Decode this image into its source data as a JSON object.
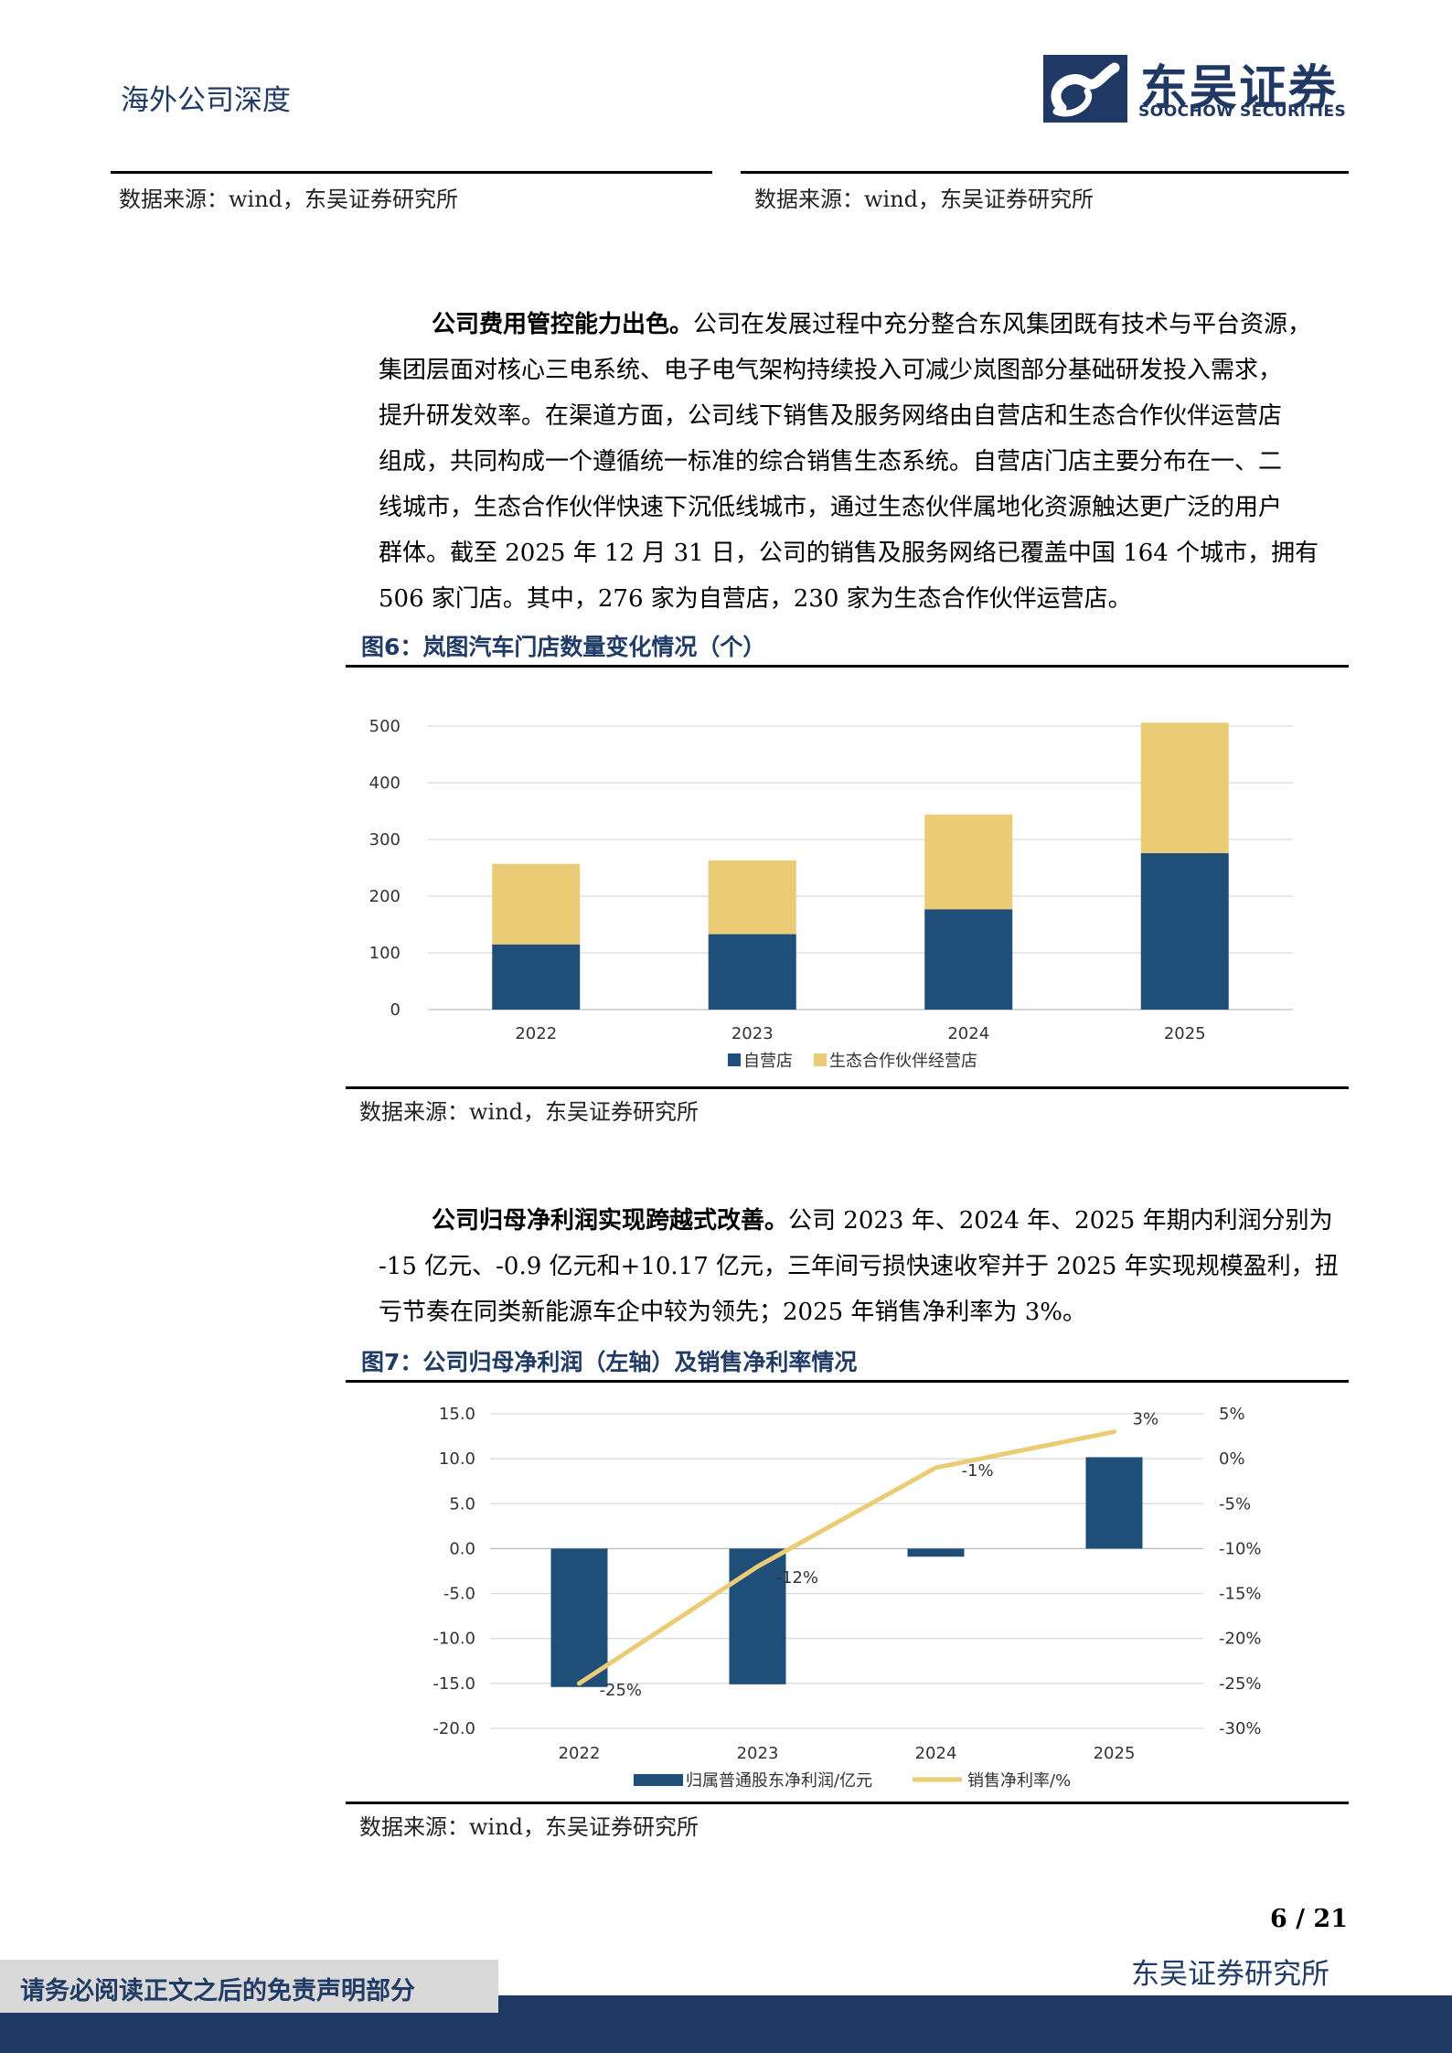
{
  "header": {
    "title": "海外公司深度",
    "logo_cn": "东吴证券",
    "logo_en": "SOOCHOW SECURITIES"
  },
  "top_sources": {
    "left": "数据来源：wind，东吴证券研究所",
    "right": "数据来源：wind，东吴证券研究所"
  },
  "para1": {
    "lead": "公司费用管控能力出色。",
    "lines": [
      "公司在发展过程中充分整合东风集团既有技术与平台资源，",
      "集团层面对核心三电系统、电子电气架构持续投入可减少岚图部分基础研发投入需求，",
      "提升研发效率。在渠道方面，公司线下销售及服务网络由自营店和生态合作伙伴运营店",
      "组成，共同构成一个遵循统一标准的综合销售生态系统。自营店门店主要分布在一、二",
      "线城市，生态合作伙伴快速下沉低线城市，通过生态伙伴属地化资源触达更广泛的用户",
      "群体。截至 2025 年 12 月 31 日，公司的销售及服务网络已覆盖中国 164 个城市，拥有",
      "506 家门店。其中，276 家为自营店，230 家为生态合作伙伴运营店。"
    ]
  },
  "fig6": {
    "title": "图6：岚图汽车门店数量变化情况（个）",
    "source": "数据来源：wind，东吴证券研究所"
  },
  "para2": {
    "lead": "公司归母净利润实现跨越式改善。",
    "lines": [
      "公司 2023 年、2024 年、2025 年期内利润分别为",
      "-15 亿元、-0.9 亿元和+10.17 亿元，三年间亏损快速收窄并于 2025 年实现规模盈利，扭",
      "亏节奏在同类新能源车企中较为领先；2025 年销售净利率为 3%。"
    ]
  },
  "fig7": {
    "title": "图7：公司归母净利润（左轴）及销售净利率情况",
    "source": "数据来源：wind，东吴证券研究所"
  },
  "chart_data": [
    {
      "type": "bar",
      "stacked": true,
      "categories": [
        "2022",
        "2023",
        "2024",
        "2025"
      ],
      "series": [
        {
          "name": "自营店",
          "values": [
            115,
            133,
            177,
            276
          ],
          "color": "#1f4e79"
        },
        {
          "name": "生态合作伙伴经营店",
          "values": [
            142,
            130,
            167,
            230
          ],
          "color": "#ebcc76"
        }
      ],
      "ylim": [
        0,
        500
      ],
      "yticks": [
        0,
        100,
        200,
        300,
        400,
        500
      ],
      "grid": true,
      "legend": "bottom"
    },
    {
      "type": "bar+line",
      "categories": [
        "2022",
        "2023",
        "2024",
        "2025"
      ],
      "series": [
        {
          "name": "归属普通股东净利润/亿元",
          "type": "bar",
          "axis": "left",
          "values": [
            -15.4,
            -15.1,
            -0.9,
            10.17
          ],
          "color": "#1f4e79"
        },
        {
          "name": "销售净利率/%",
          "type": "line",
          "axis": "right",
          "values": [
            -25,
            -12,
            -1,
            3
          ],
          "labels": [
            "-25%",
            "-12%",
            "-1%",
            "3%"
          ],
          "color": "#ebcc76"
        }
      ],
      "ylim_left": [
        -20,
        15
      ],
      "yticks_left": [
        "15.0",
        "10.0",
        "5.0",
        "0.0",
        "-5.0",
        "-10.0",
        "-15.0",
        "-20.0"
      ],
      "ylim_right": [
        -30,
        5
      ],
      "yticks_right": [
        "5%",
        "0%",
        "-5%",
        "-10%",
        "-15%",
        "-20%",
        "-25%",
        "-30%"
      ],
      "grid": true,
      "legend": "bottom"
    }
  ],
  "footer": {
    "page": "6  /  21",
    "institute": "东吴证券研究所",
    "disclaimer": "请务必阅读正文之后的免责声明部分"
  }
}
